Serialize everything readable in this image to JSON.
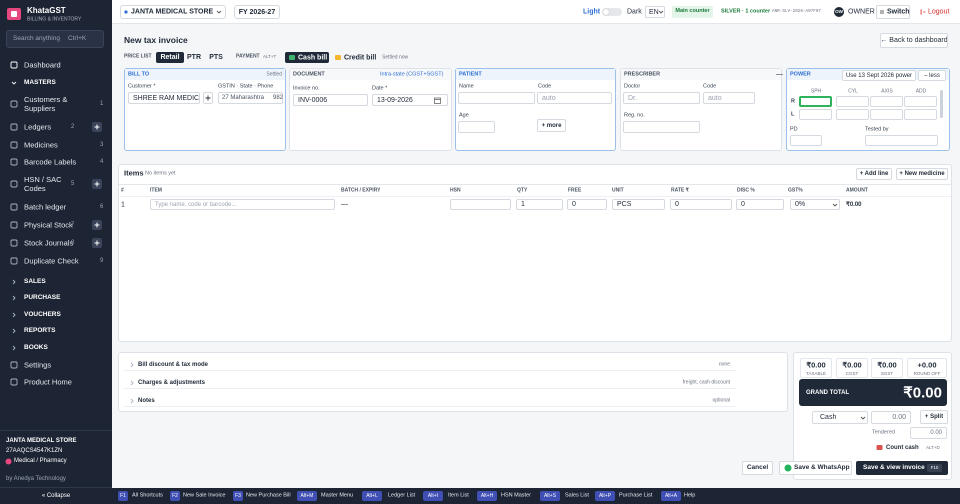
{
  "sidebar": {
    "brand": "KhataGST",
    "tagline": "BILLING & INVENTORY",
    "search": "Search anything",
    "search_key": "Ctrl+K",
    "dashboard": "Dashboard",
    "section": "MASTERS",
    "masters": [
      {
        "label": "Customers & Suppliers",
        "key": "1"
      },
      {
        "label": "Ledgers",
        "key": "2"
      },
      {
        "label": "Medicines",
        "key": "3"
      },
      {
        "label": "Barcode Labels",
        "key": "4"
      },
      {
        "label": "HSN / SAC Codes",
        "key": "5"
      },
      {
        "label": "Batch ledger",
        "key": "6"
      },
      {
        "label": "Physical Stock",
        "key": "7"
      },
      {
        "label": "Stock Journals",
        "key": "8"
      },
      {
        "label": "Duplicate Check",
        "key": "9"
      }
    ],
    "groups": [
      "SALES",
      "PURCHASE",
      "VOUCHERS",
      "REPORTS",
      "BOOKS"
    ],
    "links": [
      "Settings",
      "Product Home"
    ],
    "store": "JANTA MEDICAL STORE",
    "gstin": "27AAQCS4547K1ZN",
    "business": "Medical / Pharmacy",
    "credit": "by Anedya Technology",
    "collapse": "« Collapse"
  },
  "topbar": {
    "store": "JANTA MEDICAL STORE",
    "fy": "FY 2026-27",
    "theme_light": "Light",
    "theme_dark": "Dark",
    "lang": "EN",
    "counter": "Main counter",
    "plan": "SILVER · 1 counter",
    "license": "ANR-SLV-2026-A07F07",
    "avatar": "OW",
    "role": "OWNER",
    "switch": "Switch",
    "logout": "Logout"
  },
  "page": {
    "title": "New tax invoice",
    "back": "← Back to dashboard",
    "price_list_label": "PRICE LIST",
    "price_lists": [
      "Retail",
      "PTR",
      "PTS"
    ],
    "payment_label": "PAYMENT",
    "payment_key": "ALT+T",
    "payment_modes": [
      "Cash bill",
      "Credit bill"
    ],
    "payment_note": "Settled now"
  },
  "bill_to": {
    "title": "BILL TO",
    "status": "Settled",
    "customer_label": "Customer *",
    "customer": "SHREE RAM MEDICAL",
    "gstin_label": "GSTIN · State · Phone",
    "state": "27 Maharashtra",
    "phone": "982"
  },
  "document": {
    "title": "DOCUMENT",
    "tax_mode": "Intra-state (CGST+SGST)",
    "invoice_label": "Invoice no.",
    "invoice_no": "INV-0006",
    "date_label": "Date *",
    "date": "13-09-2026"
  },
  "patient": {
    "title": "PATIENT",
    "name_label": "Name",
    "code_label": "Code",
    "code_placeholder": "auto",
    "age_label": "Age",
    "more": "+ more"
  },
  "prescriber": {
    "title": "PRESCRIBER",
    "collapse": "—",
    "doctor_label": "Doctor",
    "doctor_placeholder": "Dr.",
    "code_label": "Code",
    "code_placeholder": "auto",
    "reg_label": "Reg. no."
  },
  "power": {
    "title": "POWER",
    "use_button": "Use 13 Sept 2026 power",
    "less": "– less",
    "columns": [
      "SPH",
      "CYL",
      "AXIS",
      "ADD"
    ],
    "rows": [
      "R",
      "L"
    ],
    "pd_label": "PD",
    "tested_label": "Tested by"
  },
  "items": {
    "title": "Items",
    "status": "No items yet",
    "add_line": "+ Add line",
    "new_medicine": "+ New medicine",
    "columns": [
      "#",
      "ITEM",
      "BATCH / EXPIRY",
      "HSN",
      "QTY",
      "FREE",
      "UNIT",
      "RATE ₹",
      "DISC %",
      "GST%",
      "AMOUNT"
    ],
    "rows": [
      {
        "no": "1",
        "item_placeholder": "Type name, code or barcode...",
        "batch": "—",
        "qty": "1",
        "free": "0",
        "unit": "PCS",
        "rate": "0",
        "disc": "0",
        "gst": "0%",
        "amount": "₹0.00"
      }
    ]
  },
  "adjustments": [
    {
      "label": "Bill discount & tax mode",
      "hint": "none"
    },
    {
      "label": "Charges & adjustments",
      "hint": "freight, cash discount"
    },
    {
      "label": "Notes",
      "hint": "optional"
    }
  ],
  "totals": {
    "boxes": [
      {
        "value": "₹0.00",
        "label": "TAXABLE"
      },
      {
        "value": "₹0.00",
        "label": "CGST"
      },
      {
        "value": "₹0.00",
        "label": "SGST"
      },
      {
        "value": "+0.00",
        "label": "ROUND OFF"
      }
    ],
    "grand_total_label": "GRAND TOTAL",
    "grand_total": "₹0.00",
    "payment_mode": "Cash",
    "amount": "0.00",
    "split": "+ Split",
    "tendered_label": "Tendered",
    "tendered": "0.00",
    "count_cash": "Count cash",
    "count_key": "ALT+D"
  },
  "actions": {
    "cancel": "Cancel",
    "whatsapp": "Save & WhatsApp",
    "save": "Save & view invoice",
    "save_key": "F10"
  },
  "shortcuts": [
    {
      "key": "F1",
      "label": "All Shortcuts"
    },
    {
      "key": "F2",
      "label": "New Sale Invoice"
    },
    {
      "key": "F3",
      "label": "New Purchase Bill"
    },
    {
      "key": "Alt+M",
      "label": "Master Menu"
    },
    {
      "key": "Alt+L",
      "label": "Ledger List"
    },
    {
      "key": "Alt+I",
      "label": "Item List"
    },
    {
      "key": "Alt+H",
      "label": "HSN Master"
    },
    {
      "key": "Alt+S",
      "label": "Sales List"
    },
    {
      "key": "Alt+P",
      "label": "Purchase List"
    },
    {
      "key": "Alt+A",
      "label": "Help"
    }
  ]
}
